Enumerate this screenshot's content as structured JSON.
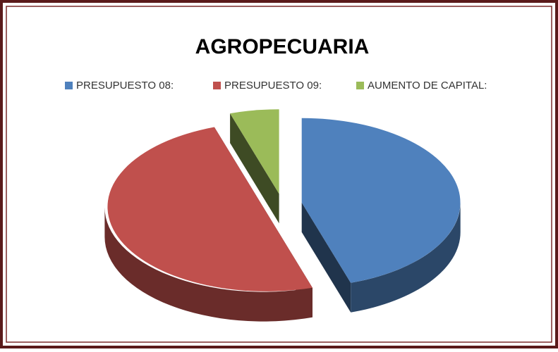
{
  "chart_data": {
    "type": "pie3d",
    "title": "AGROPECUARIA",
    "categories": [
      "PRESUPUESTO 08:",
      "PRESUPUESTO 09:",
      "AUMENTO DE CAPITAL:"
    ],
    "values": [
      45,
      50,
      5
    ],
    "colors": [
      "#4f81bd",
      "#c0504d",
      "#9bbb59"
    ],
    "legend": "top"
  }
}
